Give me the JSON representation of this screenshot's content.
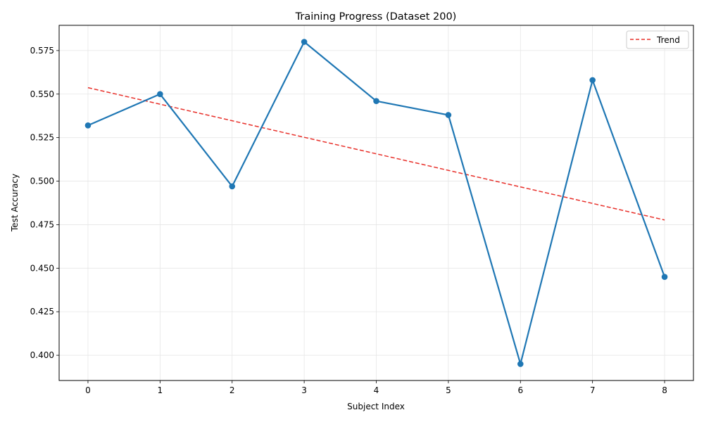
{
  "chart_data": {
    "type": "line",
    "title": "Training Progress (Dataset 200)",
    "xlabel": "Subject Index",
    "ylabel": "Test Accuracy",
    "x": [
      0,
      1,
      2,
      3,
      4,
      5,
      6,
      7,
      8
    ],
    "xlim": [
      -0.4,
      8.4
    ],
    "ylim": [
      0.3855,
      0.5895
    ],
    "xticks": [
      0,
      1,
      2,
      3,
      4,
      5,
      6,
      7,
      8
    ],
    "yticks": [
      0.4,
      0.425,
      0.45,
      0.475,
      0.5,
      0.525,
      0.55,
      0.575
    ],
    "ytick_labels": [
      "0.400",
      "0.425",
      "0.450",
      "0.475",
      "0.500",
      "0.525",
      "0.550",
      "0.575"
    ],
    "grid": true,
    "legend_position": "top-right",
    "series": [
      {
        "values": [
          0.532,
          0.55,
          0.497,
          0.58,
          0.546,
          0.538,
          0.395,
          0.558,
          0.445
        ],
        "color": "#1f77b4",
        "style": "solid-with-markers"
      },
      {
        "name": "Trend",
        "values": [
          0.5537,
          0.5442,
          0.5347,
          0.5252,
          0.5157,
          0.5062,
          0.4967,
          0.4872,
          0.4777
        ],
        "color": "#e8302a",
        "style": "dashed"
      }
    ]
  }
}
